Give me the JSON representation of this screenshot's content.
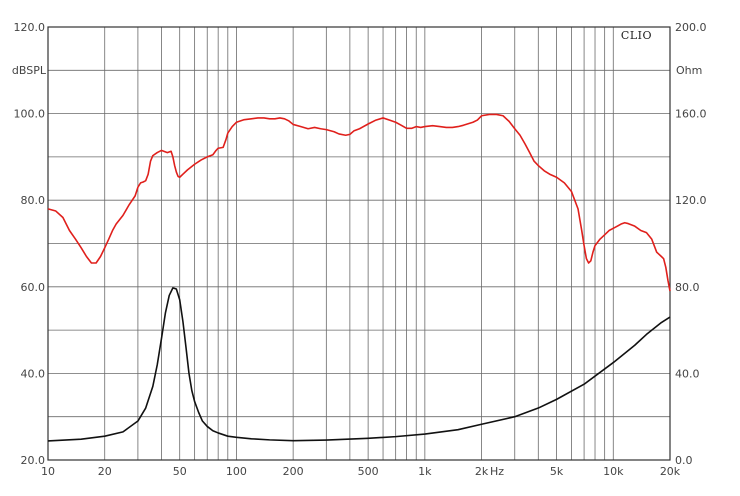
{
  "chart_data": {
    "type": "line",
    "title": "",
    "brand": "CLIO",
    "x_scale": "log",
    "xlim": [
      10,
      20000
    ],
    "x_tick_labels": [
      {
        "value": 10,
        "label": "10"
      },
      {
        "value": 20,
        "label": "20"
      },
      {
        "value": 50,
        "label": "50"
      },
      {
        "value": 100,
        "label": "100"
      },
      {
        "value": 200,
        "label": "200"
      },
      {
        "value": 500,
        "label": "500"
      },
      {
        "value": 1000,
        "label": "1k"
      },
      {
        "value": 2000,
        "label": "2k"
      },
      {
        "value": 5000,
        "label": "5k"
      },
      {
        "value": 10000,
        "label": "10k"
      },
      {
        "value": 20000,
        "label": "20k"
      }
    ],
    "xlabel": "Hz",
    "y_left": {
      "unit": "dBSPL",
      "ylim": [
        20,
        120
      ],
      "tick_labels": [
        {
          "value": 120,
          "label": "120.0"
        },
        {
          "value": 100,
          "label": "100.0"
        },
        {
          "value": 80,
          "label": "80.0"
        },
        {
          "value": 60,
          "label": "60.0"
        },
        {
          "value": 40,
          "label": "40.0"
        },
        {
          "value": 20,
          "label": "20.0"
        }
      ]
    },
    "y_right": {
      "unit": "Ohm",
      "ylim": [
        0,
        200
      ],
      "tick_labels": [
        {
          "value": 200,
          "label": "200.0"
        },
        {
          "value": 160,
          "label": "160.0"
        },
        {
          "value": 120,
          "label": "120.0"
        },
        {
          "value": 80,
          "label": "80.0"
        },
        {
          "value": 40,
          "label": "40.0"
        },
        {
          "value": 0,
          "label": "0.0"
        }
      ]
    },
    "grid": true,
    "series": [
      {
        "axis": "left",
        "color": "#e0201c",
        "points": [
          [
            10,
            78
          ],
          [
            11,
            77.5
          ],
          [
            12,
            76
          ],
          [
            13,
            73
          ],
          [
            14,
            71
          ],
          [
            15,
            69
          ],
          [
            16,
            67
          ],
          [
            17,
            65.5
          ],
          [
            18,
            65.5
          ],
          [
            19,
            67
          ],
          [
            20,
            69
          ],
          [
            21,
            71
          ],
          [
            22,
            73
          ],
          [
            23,
            74.5
          ],
          [
            25,
            76.5
          ],
          [
            27,
            79
          ],
          [
            29,
            81
          ],
          [
            30,
            83
          ],
          [
            31,
            84
          ],
          [
            32,
            84.2
          ],
          [
            33,
            84.5
          ],
          [
            34,
            86
          ],
          [
            35,
            89
          ],
          [
            36,
            90.3
          ],
          [
            38,
            91
          ],
          [
            40,
            91.5
          ],
          [
            43,
            91
          ],
          [
            45,
            91.3
          ],
          [
            46,
            90
          ],
          [
            47,
            88
          ],
          [
            48,
            86.5
          ],
          [
            49,
            85.5
          ],
          [
            50,
            85.3
          ],
          [
            52,
            86
          ],
          [
            55,
            87
          ],
          [
            60,
            88.3
          ],
          [
            65,
            89.3
          ],
          [
            70,
            90
          ],
          [
            75,
            90.5
          ],
          [
            78,
            91.5
          ],
          [
            80,
            92
          ],
          [
            85,
            92.2
          ],
          [
            88,
            94
          ],
          [
            90,
            95.5
          ],
          [
            95,
            97
          ],
          [
            100,
            98
          ],
          [
            110,
            98.6
          ],
          [
            120,
            98.8
          ],
          [
            130,
            99
          ],
          [
            140,
            99
          ],
          [
            150,
            98.8
          ],
          [
            160,
            98.8
          ],
          [
            170,
            99
          ],
          [
            180,
            98.8
          ],
          [
            190,
            98.3
          ],
          [
            200,
            97.5
          ],
          [
            220,
            97
          ],
          [
            240,
            96.5
          ],
          [
            260,
            96.8
          ],
          [
            280,
            96.5
          ],
          [
            300,
            96.3
          ],
          [
            330,
            95.8
          ],
          [
            350,
            95.3
          ],
          [
            380,
            95
          ],
          [
            400,
            95.2
          ],
          [
            420,
            96
          ],
          [
            450,
            96.5
          ],
          [
            500,
            97.6
          ],
          [
            550,
            98.5
          ],
          [
            600,
            99
          ],
          [
            650,
            98.5
          ],
          [
            700,
            98
          ],
          [
            750,
            97.3
          ],
          [
            800,
            96.6
          ],
          [
            850,
            96.6
          ],
          [
            900,
            97
          ],
          [
            950,
            96.8
          ],
          [
            1000,
            97
          ],
          [
            1100,
            97.2
          ],
          [
            1200,
            97
          ],
          [
            1300,
            96.8
          ],
          [
            1400,
            96.8
          ],
          [
            1500,
            97
          ],
          [
            1600,
            97.3
          ],
          [
            1800,
            98
          ],
          [
            1900,
            98.5
          ],
          [
            2000,
            99.5
          ],
          [
            2200,
            99.8
          ],
          [
            2400,
            99.8
          ],
          [
            2600,
            99.5
          ],
          [
            2800,
            98.2
          ],
          [
            3000,
            96.5
          ],
          [
            3200,
            95
          ],
          [
            3400,
            93
          ],
          [
            3600,
            91
          ],
          [
            3800,
            89
          ],
          [
            4000,
            88
          ],
          [
            4300,
            86.8
          ],
          [
            4600,
            86
          ],
          [
            5000,
            85.3
          ],
          [
            5500,
            84
          ],
          [
            6000,
            82
          ],
          [
            6500,
            78
          ],
          [
            6800,
            73
          ],
          [
            7000,
            69.5
          ],
          [
            7200,
            66.5
          ],
          [
            7400,
            65.5
          ],
          [
            7600,
            66
          ],
          [
            7800,
            68
          ],
          [
            8000,
            69.5
          ],
          [
            8500,
            71
          ],
          [
            9000,
            72
          ],
          [
            9500,
            73
          ],
          [
            10000,
            73.5
          ],
          [
            10500,
            74
          ],
          [
            11000,
            74.5
          ],
          [
            11500,
            74.8
          ],
          [
            12000,
            74.6
          ],
          [
            13000,
            74
          ],
          [
            14000,
            73
          ],
          [
            15000,
            72.5
          ],
          [
            16000,
            71
          ],
          [
            17000,
            68
          ],
          [
            18000,
            67
          ],
          [
            18500,
            66.5
          ],
          [
            19000,
            64.5
          ],
          [
            19500,
            61.5
          ],
          [
            20000,
            59
          ]
        ]
      },
      {
        "axis": "right",
        "color": "#111111",
        "points": [
          [
            10,
            8.8
          ],
          [
            15,
            9.6
          ],
          [
            20,
            11
          ],
          [
            25,
            13
          ],
          [
            30,
            18
          ],
          [
            33,
            24
          ],
          [
            36,
            34
          ],
          [
            38,
            44
          ],
          [
            40,
            56
          ],
          [
            42,
            68
          ],
          [
            44,
            76
          ],
          [
            46,
            79.5
          ],
          [
            48,
            79
          ],
          [
            50,
            74
          ],
          [
            52,
            64
          ],
          [
            54,
            52
          ],
          [
            56,
            40
          ],
          [
            58,
            32
          ],
          [
            60,
            27
          ],
          [
            63,
            22
          ],
          [
            66,
            18
          ],
          [
            70,
            15.5
          ],
          [
            75,
            13.5
          ],
          [
            80,
            12.5
          ],
          [
            90,
            11
          ],
          [
            100,
            10.5
          ],
          [
            120,
            9.8
          ],
          [
            150,
            9.3
          ],
          [
            200,
            8.9
          ],
          [
            300,
            9.2
          ],
          [
            500,
            10
          ],
          [
            700,
            10.8
          ],
          [
            1000,
            12
          ],
          [
            1500,
            14
          ],
          [
            2000,
            16.5
          ],
          [
            3000,
            20
          ],
          [
            4000,
            24
          ],
          [
            5000,
            28
          ],
          [
            7000,
            35
          ],
          [
            10000,
            45
          ],
          [
            13000,
            53
          ],
          [
            15000,
            58
          ],
          [
            18000,
            63.5
          ],
          [
            20000,
            66
          ]
        ]
      }
    ]
  }
}
